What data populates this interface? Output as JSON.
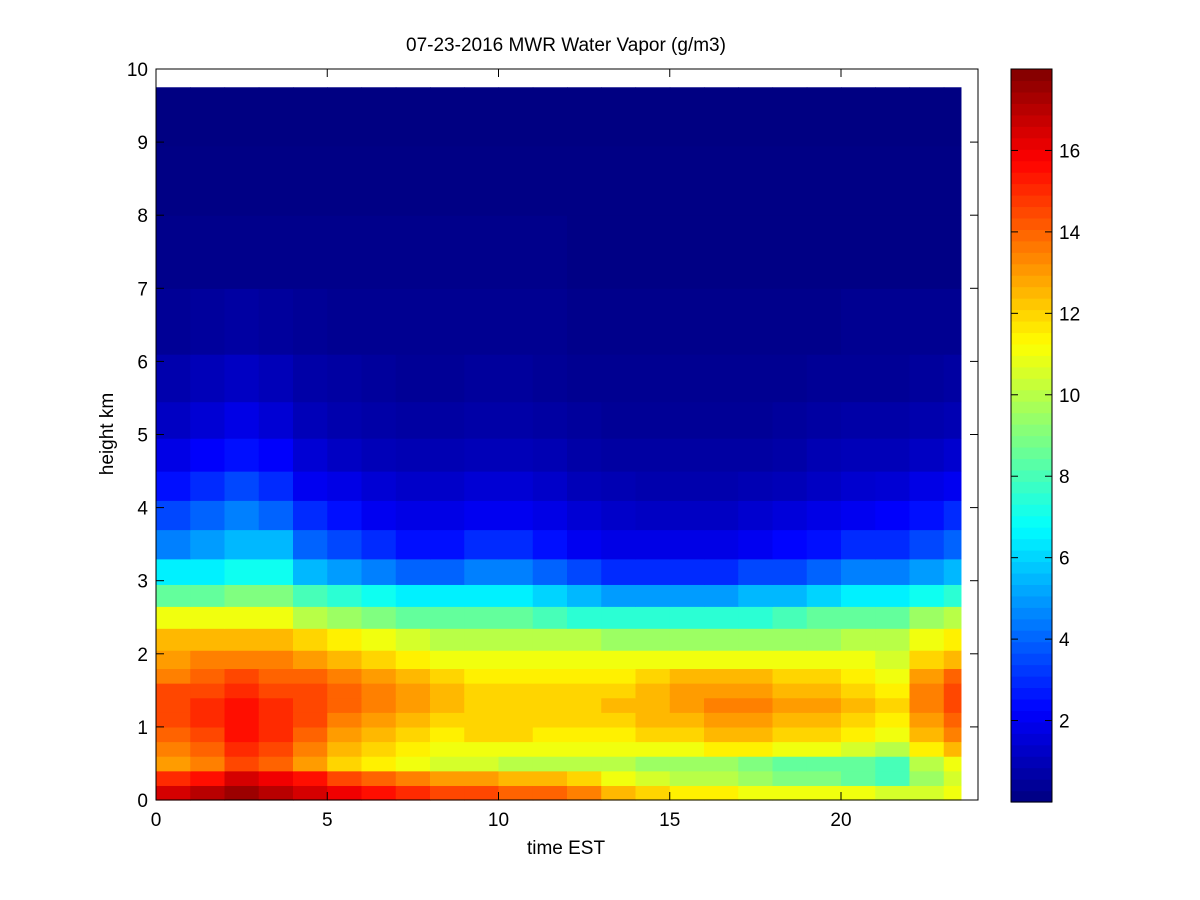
{
  "chart_data": {
    "type": "heatmap",
    "title": "07-23-2016 MWR Water Vapor (g/m3)",
    "xlabel": "time EST",
    "ylabel": "height km",
    "xlim": [
      0,
      24
    ],
    "ylim": [
      0,
      10
    ],
    "x_ticks": [
      0,
      5,
      10,
      15,
      20
    ],
    "y_ticks": [
      0,
      1,
      2,
      3,
      4,
      5,
      6,
      7,
      8,
      9,
      10
    ],
    "colorbar": {
      "colormap": "jet",
      "range": [
        0,
        18
      ],
      "ticks": [
        2,
        4,
        6,
        8,
        10,
        12,
        14,
        16
      ]
    },
    "x": [
      0.5,
      1.5,
      2.5,
      3.5,
      4.5,
      5.5,
      6.5,
      7.5,
      8.5,
      9.5,
      10.5,
      11.5,
      12.5,
      13.5,
      14.5,
      15.5,
      16.5,
      17.5,
      18.5,
      19.5,
      20.5,
      21.5,
      22.5,
      23.5
    ],
    "y": [
      0.1,
      0.3,
      0.5,
      0.7,
      0.9,
      1.1,
      1.3,
      1.5,
      1.7,
      1.9,
      2.2,
      2.5,
      2.8,
      3.1,
      3.5,
      3.9,
      4.3,
      4.7,
      5.2,
      5.7,
      6.5,
      7.5,
      8.5,
      9.4
    ],
    "z": [
      [
        16.5,
        17.0,
        17.5,
        17.0,
        16.5,
        16.0,
        15.5,
        15.0,
        14.5,
        14.5,
        14.0,
        14.0,
        13.5,
        12.5,
        12.0,
        11.5,
        11.5,
        11.0,
        11.0,
        11.0,
        11.0,
        10.5,
        10.5,
        11.0
      ],
      [
        15.0,
        15.5,
        16.5,
        16.0,
        15.5,
        14.5,
        14.0,
        13.5,
        13.0,
        13.0,
        12.5,
        12.5,
        12.0,
        11.0,
        10.5,
        10.0,
        10.0,
        9.5,
        9.0,
        9.0,
        8.5,
        8.0,
        9.5,
        10.5
      ],
      [
        13.0,
        13.5,
        14.5,
        14.0,
        13.0,
        12.0,
        11.5,
        11.0,
        10.5,
        10.5,
        10.0,
        10.0,
        10.0,
        10.0,
        9.5,
        9.5,
        9.5,
        9.0,
        8.5,
        8.5,
        8.5,
        8.0,
        10.0,
        11.0
      ],
      [
        13.5,
        14.0,
        15.0,
        14.5,
        13.5,
        12.5,
        12.0,
        11.5,
        11.0,
        11.0,
        11.0,
        11.0,
        11.0,
        11.0,
        11.0,
        11.0,
        11.5,
        11.5,
        11.0,
        11.0,
        10.5,
        10.0,
        11.5,
        12.5
      ],
      [
        14.0,
        14.5,
        15.5,
        15.0,
        14.0,
        13.0,
        12.5,
        12.0,
        11.5,
        12.0,
        12.0,
        11.5,
        11.5,
        11.5,
        12.0,
        12.0,
        12.5,
        12.5,
        12.0,
        12.0,
        11.5,
        11.0,
        12.5,
        13.5
      ],
      [
        14.5,
        15.0,
        15.5,
        15.0,
        14.5,
        13.5,
        13.0,
        12.5,
        12.0,
        12.0,
        12.0,
        12.0,
        12.0,
        12.0,
        12.5,
        12.5,
        13.0,
        13.0,
        12.5,
        12.5,
        12.0,
        11.5,
        13.0,
        14.0
      ],
      [
        14.5,
        15.0,
        15.5,
        15.0,
        14.5,
        14.0,
        13.5,
        13.0,
        12.5,
        12.0,
        12.0,
        12.0,
        12.0,
        12.5,
        12.5,
        13.0,
        13.5,
        13.5,
        13.0,
        13.0,
        12.5,
        12.0,
        13.5,
        14.5
      ],
      [
        14.5,
        14.5,
        15.0,
        14.5,
        14.5,
        14.0,
        13.5,
        13.0,
        12.5,
        12.0,
        12.0,
        12.0,
        12.0,
        12.0,
        12.5,
        13.0,
        13.0,
        13.0,
        12.5,
        12.5,
        12.0,
        11.5,
        13.5,
        14.5
      ],
      [
        13.5,
        14.0,
        14.5,
        14.0,
        14.0,
        13.5,
        13.0,
        12.5,
        12.0,
        11.5,
        11.5,
        11.5,
        11.5,
        11.5,
        12.0,
        12.5,
        12.5,
        12.5,
        12.0,
        12.0,
        11.5,
        11.0,
        13.0,
        14.0
      ],
      [
        13.0,
        13.5,
        13.5,
        13.5,
        13.0,
        12.5,
        12.0,
        11.5,
        11.0,
        11.0,
        11.0,
        11.0,
        11.0,
        11.0,
        11.0,
        11.0,
        11.0,
        11.0,
        11.0,
        11.0,
        11.0,
        10.5,
        12.0,
        12.5
      ],
      [
        12.5,
        12.5,
        12.5,
        12.5,
        12.0,
        11.5,
        11.0,
        10.5,
        10.0,
        10.0,
        10.0,
        10.0,
        10.0,
        9.5,
        9.5,
        9.5,
        9.5,
        9.5,
        9.5,
        9.5,
        10.0,
        10.0,
        11.0,
        11.5
      ],
      [
        11.0,
        11.0,
        11.0,
        11.0,
        10.0,
        9.5,
        9.0,
        8.5,
        8.5,
        8.5,
        8.5,
        8.0,
        7.5,
        7.5,
        7.5,
        7.5,
        7.5,
        7.5,
        8.0,
        8.5,
        8.5,
        8.5,
        9.5,
        10.0
      ],
      [
        8.5,
        8.5,
        9.0,
        9.0,
        8.0,
        7.5,
        7.0,
        6.5,
        6.5,
        6.5,
        6.5,
        6.0,
        5.5,
        5.0,
        5.0,
        5.0,
        5.0,
        5.5,
        5.5,
        6.0,
        6.5,
        6.5,
        7.0,
        7.5
      ],
      [
        6.5,
        6.5,
        7.0,
        7.0,
        5.5,
        5.0,
        4.5,
        4.0,
        4.0,
        4.5,
        4.5,
        4.0,
        3.5,
        3.0,
        3.0,
        3.0,
        3.0,
        3.5,
        3.5,
        4.0,
        4.5,
        4.5,
        5.0,
        5.5
      ],
      [
        4.5,
        5.0,
        5.5,
        5.5,
        4.0,
        3.5,
        3.0,
        2.5,
        2.5,
        3.0,
        3.0,
        2.5,
        2.0,
        1.8,
        1.8,
        1.8,
        1.8,
        2.0,
        2.3,
        2.5,
        3.0,
        3.0,
        3.5,
        4.0
      ],
      [
        3.5,
        4.0,
        4.5,
        4.0,
        3.0,
        2.5,
        2.0,
        1.8,
        1.8,
        2.0,
        2.0,
        1.8,
        1.5,
        1.3,
        1.2,
        1.2,
        1.2,
        1.4,
        1.6,
        1.8,
        2.0,
        2.2,
        2.5,
        3.0
      ],
      [
        2.5,
        3.0,
        3.5,
        3.0,
        2.0,
        1.8,
        1.5,
        1.3,
        1.3,
        1.5,
        1.5,
        1.3,
        1.0,
        0.9,
        0.8,
        0.8,
        0.8,
        0.9,
        1.0,
        1.2,
        1.4,
        1.5,
        1.8,
        2.0
      ],
      [
        1.8,
        2.2,
        2.5,
        2.2,
        1.5,
        1.2,
        1.0,
        0.9,
        0.9,
        1.0,
        1.0,
        0.9,
        0.7,
        0.6,
        0.6,
        0.6,
        0.6,
        0.6,
        0.7,
        0.9,
        1.0,
        1.0,
        1.2,
        1.4
      ],
      [
        1.2,
        1.5,
        1.8,
        1.5,
        1.0,
        0.8,
        0.7,
        0.6,
        0.6,
        0.7,
        0.7,
        0.6,
        0.5,
        0.4,
        0.4,
        0.4,
        0.4,
        0.4,
        0.5,
        0.6,
        0.7,
        0.7,
        0.8,
        0.9
      ],
      [
        0.8,
        1.0,
        1.2,
        1.0,
        0.7,
        0.6,
        0.5,
        0.4,
        0.4,
        0.5,
        0.5,
        0.4,
        0.3,
        0.3,
        0.3,
        0.3,
        0.3,
        0.3,
        0.3,
        0.4,
        0.4,
        0.4,
        0.5,
        0.6
      ],
      [
        0.4,
        0.5,
        0.6,
        0.5,
        0.4,
        0.3,
        0.3,
        0.3,
        0.3,
        0.3,
        0.3,
        0.3,
        0.2,
        0.2,
        0.2,
        0.2,
        0.2,
        0.2,
        0.2,
        0.2,
        0.3,
        0.3,
        0.3,
        0.3
      ],
      [
        0.2,
        0.2,
        0.2,
        0.2,
        0.2,
        0.2,
        0.2,
        0.2,
        0.2,
        0.2,
        0.2,
        0.2,
        0.1,
        0.1,
        0.1,
        0.1,
        0.1,
        0.1,
        0.1,
        0.1,
        0.1,
        0.1,
        0.1,
        0.1
      ],
      [
        0.1,
        0.1,
        0.1,
        0.1,
        0.1,
        0.1,
        0.1,
        0.1,
        0.1,
        0.1,
        0.1,
        0.1,
        0.1,
        0.1,
        0.1,
        0.1,
        0.1,
        0.1,
        0.1,
        0.1,
        0.1,
        0.1,
        0.1,
        0.1
      ],
      [
        0.05,
        0.05,
        0.05,
        0.05,
        0.05,
        0.05,
        0.05,
        0.05,
        0.05,
        0.05,
        0.05,
        0.05,
        0.05,
        0.05,
        0.05,
        0.05,
        0.05,
        0.05,
        0.05,
        0.05,
        0.05,
        0.05,
        0.05,
        0.05
      ]
    ],
    "grid": false,
    "legend": "none"
  }
}
